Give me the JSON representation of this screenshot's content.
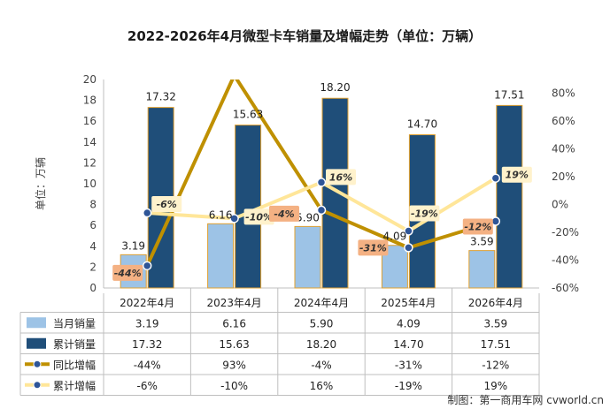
{
  "chart_data": {
    "type": "bar",
    "title": "2022-2026年4月微型卡车销量及增幅走势（单位：万辆）",
    "ylabel": "单位：万辆",
    "categories": [
      "2022年4月",
      "2023年4月",
      "2024年4月",
      "2025年4月",
      "2026年4月"
    ],
    "ylim": [
      0,
      20
    ],
    "yticks": [
      "0",
      "2",
      "4",
      "6",
      "8",
      "10",
      "12",
      "14",
      "16",
      "18",
      "20"
    ],
    "y2lim": [
      -60,
      90
    ],
    "y2ticks": [
      "-60%",
      "-40%",
      "-20%",
      "0%",
      "20%",
      "40%",
      "60%",
      "80%"
    ],
    "grid": false,
    "series": [
      {
        "name": "当月销量",
        "type": "bar",
        "color": "#9dc3e6",
        "values": [
          3.19,
          6.16,
          5.9,
          4.09,
          3.59
        ],
        "labels": [
          "3.19",
          "6.16",
          "5.90",
          "4.09",
          "3.59"
        ]
      },
      {
        "name": "累计销量",
        "type": "bar",
        "color": "#1f4e79",
        "values": [
          17.32,
          15.63,
          18.2,
          14.7,
          17.51
        ],
        "labels": [
          "17.32",
          "15.63",
          "18.20",
          "14.70",
          "17.51"
        ]
      },
      {
        "name": "同比增幅",
        "type": "line",
        "axis": "right",
        "color": "#bf9000",
        "values": [
          -44,
          93,
          -4,
          -31,
          -12
        ],
        "labels": [
          "-44%",
          "93%",
          "-4%",
          "-31%",
          "-12%"
        ]
      },
      {
        "name": "累计增幅",
        "type": "line",
        "axis": "right",
        "color": "#ffe699",
        "values": [
          -6,
          -10,
          16,
          -19,
          19
        ],
        "labels": [
          "-6%",
          "-10%",
          "16%",
          "-19%",
          "19%"
        ]
      }
    ],
    "source": "制图：第一商用车网 cvworld.cn"
  }
}
